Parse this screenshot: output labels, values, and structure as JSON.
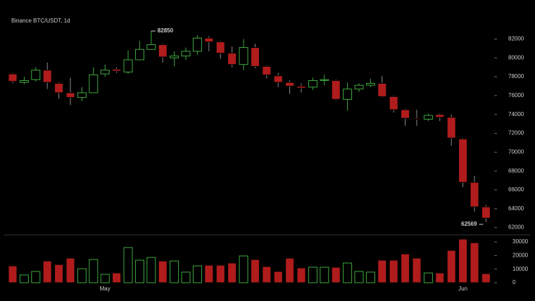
{
  "chart_data": {
    "type": "candlestick",
    "title": "Binance BTC/USDT, 1d",
    "categories": [
      null,
      null,
      null,
      null,
      null,
      null,
      null,
      null,
      "May",
      null,
      null,
      null,
      null,
      null,
      null,
      null,
      null,
      null,
      null,
      null,
      null,
      null,
      null,
      null,
      null,
      null,
      null,
      null,
      null,
      null,
      null,
      null,
      null,
      null,
      null,
      null,
      null,
      null,
      null,
      "Jun",
      null,
      null
    ],
    "open": [
      78300,
      77400,
      77700,
      78700,
      77300,
      76300,
      75800,
      76300,
      78300,
      78800,
      78500,
      79800,
      80900,
      81400,
      80000,
      80200,
      80700,
      82100,
      81700,
      80500,
      79300,
      81100,
      79100,
      78100,
      77400,
      77000,
      76900,
      77600,
      77600,
      75600,
      76700,
      77100,
      77300,
      75900,
      74500,
      73600,
      73500,
      74000,
      73700,
      71400,
      66800,
      64200
    ],
    "high": [
      78400,
      78000,
      79000,
      79500,
      77400,
      77900,
      76900,
      79000,
      79300,
      79000,
      80800,
      81800,
      82850,
      81500,
      80700,
      81100,
      82400,
      82300,
      81800,
      81200,
      82000,
      81500,
      79200,
      78400,
      77600,
      77300,
      77900,
      78200,
      77700,
      77400,
      77300,
      77800,
      78100,
      76000,
      74600,
      74500,
      74100,
      74100,
      74000,
      71500,
      67500,
      64400
    ],
    "low": [
      77300,
      77200,
      77500,
      76700,
      75700,
      75000,
      75400,
      76300,
      78000,
      78400,
      78300,
      79800,
      80900,
      79500,
      79100,
      79800,
      80300,
      80700,
      79900,
      79000,
      78700,
      78900,
      77800,
      76900,
      76200,
      76300,
      76600,
      77100,
      75500,
      74400,
      76400,
      76900,
      75800,
      74200,
      72800,
      72800,
      73300,
      73300,
      70700,
      66300,
      63700,
      62569
    ],
    "close": [
      77500,
      77600,
      78700,
      77400,
      76300,
      75800,
      76300,
      78200,
      78700,
      78600,
      79800,
      80900,
      81400,
      80100,
      80200,
      80700,
      82100,
      81700,
      80500,
      79300,
      81100,
      79100,
      78200,
      77400,
      77000,
      76800,
      77600,
      77700,
      75600,
      76700,
      77100,
      77300,
      75900,
      74500,
      73600,
      73500,
      73900,
      73700,
      71500,
      66800,
      64200,
      63000
    ],
    "ylim": [
      61300,
      84500
    ],
    "yticks": [
      62000,
      64000,
      66000,
      68000,
      70000,
      72000,
      74000,
      76000,
      78000,
      80000,
      82000
    ],
    "up_color": "#3fa83f",
    "down_color": "#b01c1c",
    "volume": {
      "values": [
        12400,
        5700,
        8300,
        16000,
        13400,
        18100,
        10300,
        17100,
        6200,
        7200,
        25900,
        16600,
        18600,
        16000,
        16000,
        7800,
        12400,
        12900,
        12900,
        14500,
        19700,
        17100,
        11900,
        8300,
        18100,
        10900,
        11400,
        11400,
        11400,
        14500,
        8300,
        7800,
        16600,
        16600,
        21200,
        18100,
        7200,
        7200,
        23800,
        32100,
        29500,
        6700
      ],
      "ylim": [
        0,
        34700
      ],
      "yticks": [
        0,
        10000,
        20000,
        30000
      ]
    }
  }
}
